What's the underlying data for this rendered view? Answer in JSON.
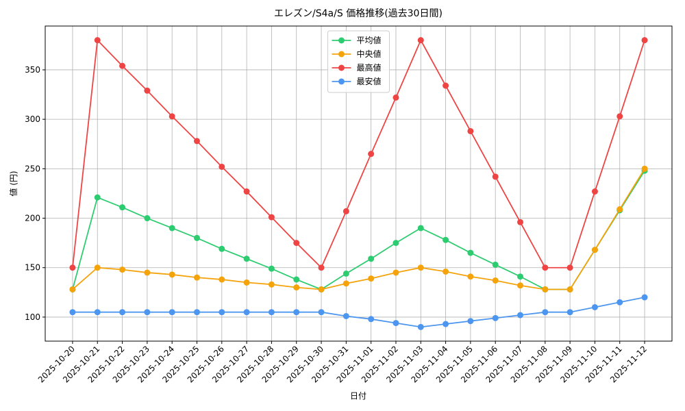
{
  "chart_data": {
    "type": "line",
    "title": "エレズン/S4a/S 価格推移(過去30日間)",
    "x_label": "日付",
    "y_label": "値 (円)",
    "categories": [
      "2025-10-20",
      "2025-10-21",
      "2025-10-22",
      "2025-10-23",
      "2025-10-24",
      "2025-10-25",
      "2025-10-26",
      "2025-10-27",
      "2025-10-28",
      "2025-10-29",
      "2025-10-30",
      "2025-10-31",
      "2025-11-01",
      "2025-11-02",
      "2025-11-03",
      "2025-11-04",
      "2025-11-05",
      "2025-11-06",
      "2025-11-07",
      "2025-11-08",
      "2025-11-09",
      "2025-11-10",
      "2025-11-11",
      "2025-11-12"
    ],
    "series": [
      {
        "name": "平均値",
        "color": "#2ecc71",
        "values": [
          128,
          221,
          211,
          200,
          190,
          180,
          169,
          159,
          149,
          138,
          128,
          144,
          159,
          175,
          190,
          178,
          165,
          153,
          141,
          128,
          128,
          168,
          208,
          248
        ]
      },
      {
        "name": "中央値",
        "color": "#f5a30a",
        "values": [
          128,
          150,
          148,
          145,
          143,
          140,
          138,
          135,
          133,
          130,
          128,
          134,
          139,
          145,
          150,
          146,
          141,
          137,
          132,
          128,
          128,
          168,
          209,
          250
        ]
      },
      {
        "name": "最高値",
        "color": "#ef4444",
        "values": [
          150,
          380,
          354,
          329,
          303,
          278,
          252,
          227,
          201,
          175,
          150,
          207,
          265,
          322,
          380,
          334,
          288,
          242,
          196,
          150,
          150,
          227,
          303,
          380
        ]
      },
      {
        "name": "最安値",
        "color": "#4d96f0",
        "values": [
          105,
          105,
          105,
          105,
          105,
          105,
          105,
          105,
          105,
          105,
          105,
          101,
          98,
          94,
          90,
          93,
          96,
          99,
          102,
          105,
          105,
          110,
          115,
          120
        ]
      }
    ],
    "ylim": [
      75.7,
      394.3
    ],
    "yticks": [
      100,
      150,
      200,
      250,
      300,
      350
    ],
    "grid": true,
    "legend": "upper center"
  }
}
